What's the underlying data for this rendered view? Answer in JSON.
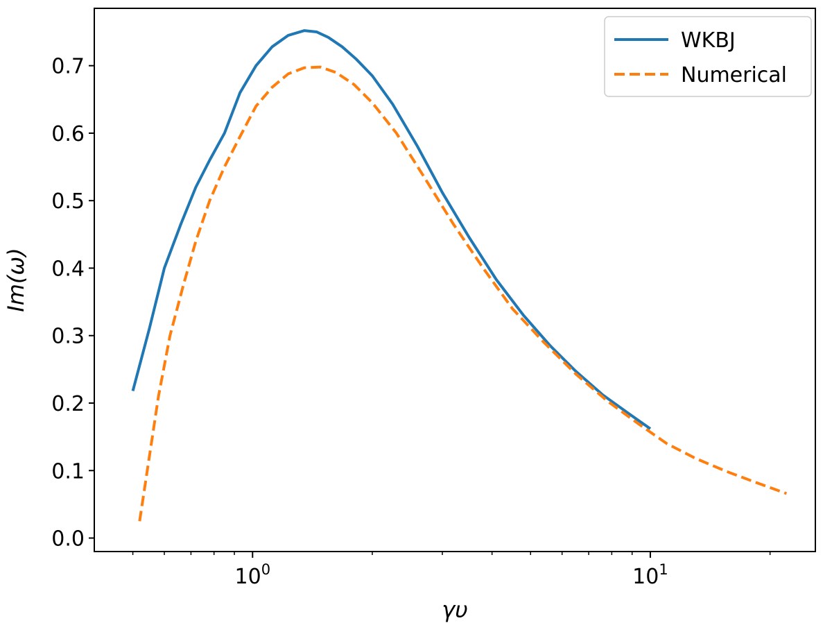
{
  "chart_data": {
    "type": "line",
    "xscale": "log",
    "xlim": [
      0.4,
      26
    ],
    "ylim": [
      -0.02,
      0.785
    ],
    "xlabel": "γυ",
    "ylabel": "Im(ω)",
    "grid": false,
    "legend_position": "top-right",
    "x_major_ticks": [
      {
        "value": 1,
        "base": "10",
        "exp": "0"
      },
      {
        "value": 10,
        "base": "10",
        "exp": "1"
      }
    ],
    "y_ticks": [
      {
        "value": 0.0,
        "label": "0.0"
      },
      {
        "value": 0.1,
        "label": "0.1"
      },
      {
        "value": 0.2,
        "label": "0.2"
      },
      {
        "value": 0.3,
        "label": "0.3"
      },
      {
        "value": 0.4,
        "label": "0.4"
      },
      {
        "value": 0.5,
        "label": "0.5"
      },
      {
        "value": 0.6,
        "label": "0.6"
      },
      {
        "value": 0.7,
        "label": "0.7"
      }
    ],
    "series": [
      {
        "name": "WKBJ",
        "color": "#1f77b4",
        "dash": "solid",
        "x": [
          0.5,
          0.55,
          0.6,
          0.66,
          0.72,
          0.78,
          0.85,
          0.93,
          1.02,
          1.12,
          1.23,
          1.35,
          1.45,
          1.55,
          1.68,
          1.82,
          2.0,
          2.25,
          2.6,
          3.0,
          3.5,
          4.1,
          4.8,
          5.6,
          6.5,
          7.6,
          8.8,
          10.0
        ],
        "y": [
          0.218,
          0.31,
          0.4,
          0.465,
          0.52,
          0.56,
          0.6,
          0.66,
          0.7,
          0.728,
          0.745,
          0.752,
          0.75,
          0.742,
          0.728,
          0.71,
          0.685,
          0.643,
          0.58,
          0.512,
          0.446,
          0.383,
          0.33,
          0.285,
          0.247,
          0.212,
          0.185,
          0.162
        ]
      },
      {
        "name": "Numerical",
        "color": "#ff7f0e",
        "dash": "dashed",
        "x": [
          0.52,
          0.55,
          0.58,
          0.62,
          0.67,
          0.72,
          0.78,
          0.85,
          0.93,
          1.02,
          1.12,
          1.23,
          1.35,
          1.48,
          1.62,
          1.8,
          2.0,
          2.3,
          2.7,
          3.2,
          3.8,
          4.5,
          5.4,
          6.5,
          7.8,
          9.3,
          11.0,
          13.0,
          15.5,
          18.5,
          22.0
        ],
        "y": [
          0.025,
          0.12,
          0.21,
          0.3,
          0.375,
          0.44,
          0.5,
          0.55,
          0.595,
          0.64,
          0.668,
          0.688,
          0.697,
          0.698,
          0.69,
          0.672,
          0.645,
          0.6,
          0.535,
          0.465,
          0.4,
          0.34,
          0.29,
          0.243,
          0.203,
          0.17,
          0.14,
          0.118,
          0.099,
          0.082,
          0.066
        ]
      }
    ]
  }
}
